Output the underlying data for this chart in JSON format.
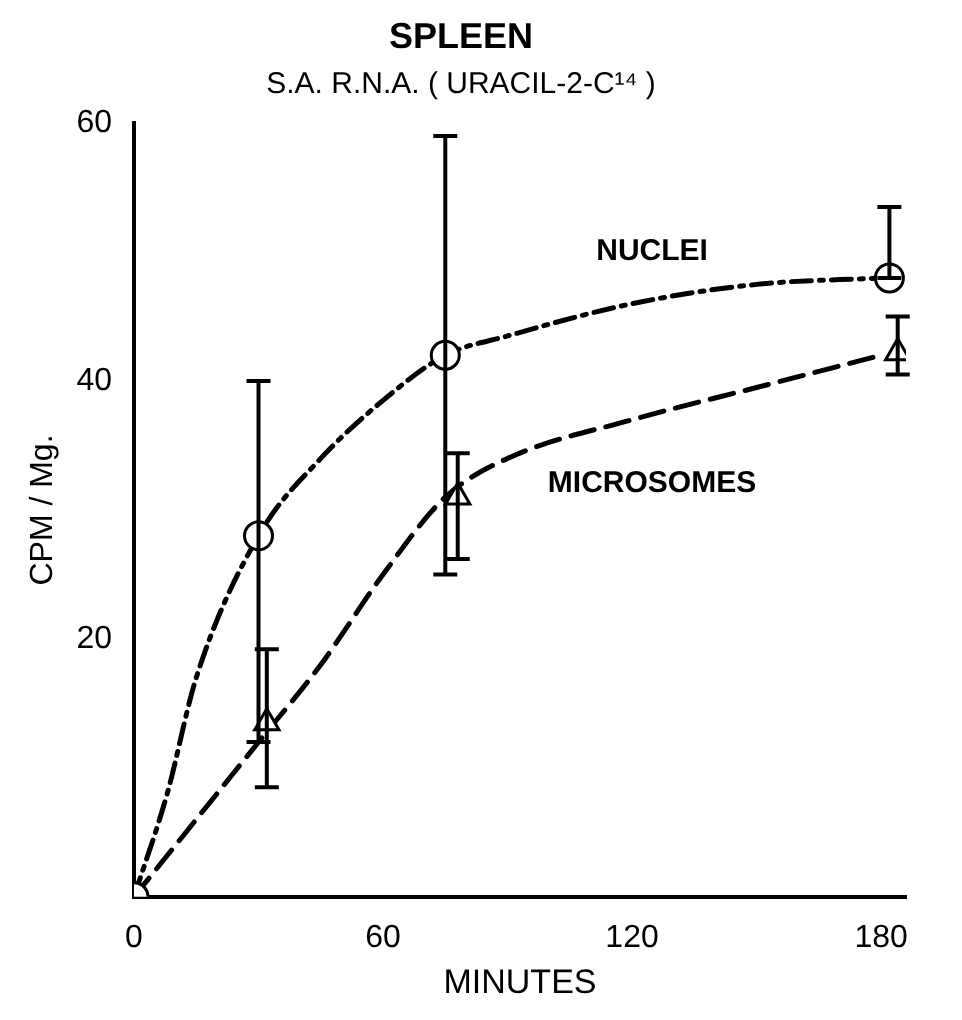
{
  "chart_data": {
    "type": "line",
    "title": "SPLEEN",
    "subtitle": "S.A. R.N.A. ( URACIL-2-C¹⁴ )",
    "xlabel": "MINUTES",
    "ylabel": "CPM / Mg.",
    "xlim": [
      0,
      186
    ],
    "xticks": [
      0,
      60,
      120,
      180
    ],
    "ylim": [
      0,
      60
    ],
    "yticks": [
      20,
      40,
      60
    ],
    "grid": false,
    "legend": false,
    "series": [
      {
        "name": "NUCLEI",
        "color": "#000000",
        "line_style": "dotted",
        "marker": "none",
        "x": [
          0,
          8,
          15,
          30,
          45,
          60,
          75,
          90,
          120,
          150,
          180
        ],
        "values": [
          0,
          8,
          17,
          28,
          34,
          38.5,
          42,
          43.5,
          46,
          47.5,
          48
        ]
      },
      {
        "name": "MICROSOMES",
        "color": "#000000",
        "line_style": "dashed",
        "marker": "none",
        "x": [
          0,
          15,
          30,
          45,
          60,
          75,
          90,
          120,
          150,
          180
        ],
        "values": [
          0,
          6,
          12,
          18,
          25,
          31,
          34,
          37,
          39.5,
          42
        ]
      },
      {
        "type": "scatter",
        "color": "#000000",
        "marker": "circle",
        "x": [
          0,
          30,
          75,
          182
        ],
        "values": [
          0,
          28,
          42,
          48
        ],
        "errors": [
          null,
          [
            12,
            40
          ],
          [
            25,
            59
          ],
          [
            48,
            53.5
          ]
        ]
      },
      {
        "type": "scatter",
        "color": "#000000",
        "marker": "triangle",
        "x": [
          32,
          78,
          184
        ],
        "values": [
          13.5,
          31,
          42.2
        ],
        "errors": [
          [
            8.5,
            19.2
          ],
          [
            26.2,
            34.4
          ],
          [
            40.5,
            45
          ]
        ]
      }
    ]
  }
}
